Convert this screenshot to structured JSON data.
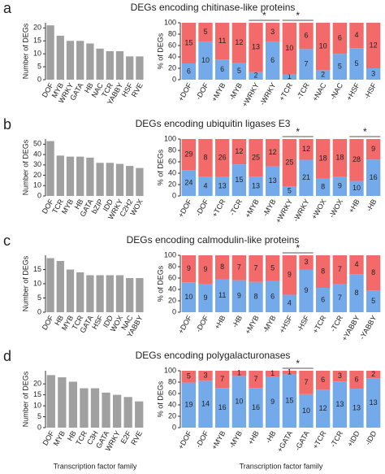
{
  "panels": [
    {
      "label": "a",
      "title": "DEGs encoding chitinase-like proteins"
    },
    {
      "label": "b",
      "title": "DEGs encoding ubiquitin ligases E3"
    },
    {
      "label": "c",
      "title": "DEGs encoding calmodulin-like proteins"
    },
    {
      "label": "d",
      "title": "DEGs encoding polygalacturonases"
    }
  ],
  "chart_data": [
    {
      "type": "bar",
      "ylabel": "Number of DEGs",
      "color": "#a0a0a0",
      "categories": [
        "DOF",
        "MYB",
        "WRKY",
        "GATA",
        "HB",
        "NAC",
        "TCR",
        "YABBY",
        "HSF",
        "RVE"
      ],
      "values": [
        21,
        17,
        15,
        15,
        14,
        12,
        11,
        11,
        9,
        9
      ],
      "ylim": [
        0,
        22
      ],
      "yticks": [
        0,
        5,
        10,
        15,
        20
      ]
    },
    {
      "type": "stacked_percent",
      "ylabel": "% of DEGs",
      "categories": [
        "+DOF",
        "-DOF",
        "+MYB",
        "-MYB",
        "+WRKY",
        "-WRKY",
        "+TCR",
        "-TCR",
        "+NAC",
        "-NAC",
        "+HSF",
        "-HSF"
      ],
      "series": [
        {
          "color": "#75aaea",
          "values": [
            6,
            10,
            6,
            5,
            2,
            6,
            1,
            7,
            2,
            5,
            5,
            3
          ]
        },
        {
          "color": "#f36a6a",
          "values": [
            15,
            5,
            11,
            12,
            13,
            3,
            10,
            6,
            10,
            6,
            4,
            12
          ]
        }
      ],
      "ylim": [
        0,
        100
      ],
      "yticks": [
        0,
        20,
        40,
        60,
        80,
        100
      ],
      "annotations": [
        {
          "text": "*",
          "categories": [
            "+WRKY",
            "-WRKY"
          ]
        },
        {
          "text": "*",
          "categories": [
            "+TCR",
            "-TCR"
          ]
        }
      ]
    },
    {
      "type": "bar",
      "ylabel": "Number of DEGs",
      "color": "#a0a0a0",
      "categories": [
        "DOF",
        "TCR",
        "MYB",
        "HB",
        "GATA",
        "bZIP",
        "IDD",
        "WRKY",
        "C2H2",
        "WOX"
      ],
      "values": [
        53,
        39,
        38,
        38,
        37,
        32,
        32,
        31,
        29,
        27
      ],
      "ylim": [
        0,
        55
      ],
      "yticks": [
        0,
        10,
        20,
        30,
        40,
        50
      ]
    },
    {
      "type": "stacked_percent",
      "ylabel": "% of DEGs",
      "categories": [
        "+DOF",
        "-DOF",
        "+TCR",
        "-TCR",
        "+MYB",
        "-MYB",
        "+WRKY",
        "-WRKY",
        "+WOX",
        "-WOX",
        "+HB",
        "-HB"
      ],
      "series": [
        {
          "color": "#75aaea",
          "values": [
            24,
            4,
            13,
            15,
            13,
            13,
            5,
            21,
            8,
            9,
            10,
            16
          ]
        },
        {
          "color": "#f36a6a",
          "values": [
            29,
            8,
            26,
            12,
            25,
            12,
            25,
            12,
            18,
            18,
            28,
            9
          ]
        }
      ],
      "ylim": [
        0,
        100
      ],
      "yticks": [
        0,
        20,
        40,
        60,
        80,
        100
      ],
      "annotations": [
        {
          "text": "*",
          "categories": [
            "+WRKY",
            "-WRKY"
          ]
        },
        {
          "text": "*",
          "categories": [
            "+HB",
            "-HB"
          ]
        }
      ]
    },
    {
      "type": "bar",
      "ylabel": "Number of DEGs",
      "color": "#a0a0a0",
      "categories": [
        "DOF",
        "HB",
        "MYB",
        "TCR",
        "GATA",
        "HSF",
        "IDD",
        "WOX",
        "NAC",
        "YABBY"
      ],
      "values": [
        19,
        18,
        15,
        14,
        13,
        13,
        13,
        13,
        12,
        12
      ],
      "ylim": [
        0,
        20
      ],
      "yticks": [
        0,
        5,
        10,
        15
      ]
    },
    {
      "type": "stacked_percent",
      "ylabel": "% of DEGs",
      "categories": [
        "+DOF",
        "-DOF",
        "+HB",
        "-HB",
        "+MYB",
        "-MYB",
        "+HSF",
        "-HSF",
        "+TCR",
        "-TCR",
        "+YABBY",
        "-YABBY"
      ],
      "series": [
        {
          "color": "#75aaea",
          "values": [
            10,
            9,
            11,
            9,
            8,
            6,
            4,
            9,
            6,
            7,
            8,
            5
          ]
        },
        {
          "color": "#f36a6a",
          "values": [
            9,
            9,
            8,
            7,
            7,
            5,
            9,
            3,
            8,
            7,
            4,
            8
          ]
        }
      ],
      "ylim": [
        0,
        100
      ],
      "yticks": [
        0,
        20,
        40,
        60,
        80,
        100
      ],
      "annotations": [
        {
          "text": "*",
          "categories": [
            "+HSF",
            "-HSF"
          ]
        }
      ]
    },
    {
      "type": "bar",
      "ylabel": "Number of DEGs",
      "xlabel": "Transcription factor family",
      "color": "#a0a0a0",
      "categories": [
        "DOF",
        "MYB",
        "HB",
        "TCR",
        "C3H",
        "GATA",
        "WRKY",
        "E2F",
        "RVE"
      ],
      "values": [
        24,
        23,
        21,
        18,
        18,
        16,
        15,
        14,
        12
      ],
      "ylim": [
        0,
        26
      ],
      "yticks": [
        0,
        5,
        10,
        15,
        20
      ]
    },
    {
      "type": "stacked_percent",
      "ylabel": "% of DEGs",
      "xlabel": "Transcription factor family",
      "categories": [
        "+DOF",
        "-DOF",
        "+MYB",
        "-MYB",
        "+HB",
        "-HB",
        "+GATA",
        "-GATA",
        "+TCR",
        "-TCR",
        "+IDD",
        "-IDD"
      ],
      "series": [
        {
          "color": "#75aaea",
          "values": [
            19,
            14,
            16,
            10,
            16,
            9,
            15,
            10,
            12,
            13,
            13,
            13
          ]
        },
        {
          "color": "#f36a6a",
          "values": [
            5,
            3,
            7,
            1,
            7,
            1,
            1,
            7,
            6,
            3,
            6,
            2
          ]
        }
      ],
      "ylim": [
        0,
        100
      ],
      "yticks": [
        0,
        20,
        40,
        60,
        80,
        100
      ],
      "annotations": [
        {
          "text": "*",
          "categories": [
            "+GATA",
            "-GATA"
          ]
        }
      ]
    }
  ]
}
